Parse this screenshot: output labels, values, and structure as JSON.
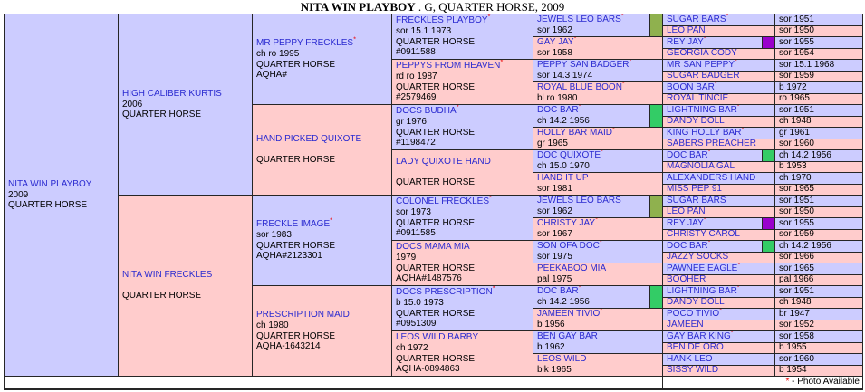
{
  "title": {
    "name": "NITA WIN PLAYBOY",
    "suffix": " . G, QUARTER HORSE, 2009"
  },
  "footer": {
    "asterisk": "*",
    "text": " - Photo Available"
  },
  "colors": {
    "sire_bg": "#ccccff",
    "dam_bg": "#ffcccc",
    "link": "#2a2ad0",
    "asterisk_red": "#ee0000",
    "marker_olive": "#8fb14e",
    "marker_green": "#33cc66",
    "marker_purple": "#9900cc",
    "border": "#262626"
  },
  "pedigree": {
    "columns": [
      {
        "generation": 1,
        "cells": [
          {
            "name": "NITA WIN PLAYBOY",
            "photo": false,
            "lines": [
              "2009",
              "QUARTER HORSE"
            ]
          }
        ]
      },
      {
        "generation": 2,
        "cells": [
          {
            "name": "HIGH CALIBER KURTIS",
            "photo": false,
            "lines": [
              "2006",
              "QUARTER HORSE"
            ]
          },
          {
            "name": "NITA WIN FRECKLES",
            "photo": false,
            "lines": [
              "",
              "QUARTER HORSE"
            ]
          }
        ]
      },
      {
        "generation": 3,
        "cells": [
          {
            "name": "MR PEPPY FRECKLES",
            "photo": true,
            "lines": [
              "ch ro 1995",
              "QUARTER HORSE",
              "AQHA#"
            ]
          },
          {
            "name": "HAND PICKED QUIXOTE",
            "photo": false,
            "lines": [
              "",
              "QUARTER HORSE"
            ]
          },
          {
            "name": "FRECKLE IMAGE",
            "photo": true,
            "lines": [
              "sor 1983",
              "QUARTER HORSE",
              "AQHA#2123301"
            ]
          },
          {
            "name": "PRESCRIPTION MAID",
            "photo": false,
            "lines": [
              "ch 1980",
              "QUARTER HORSE",
              "AQHA-1643214"
            ]
          }
        ]
      },
      {
        "generation": 4,
        "cells": [
          {
            "name": "FRECKLES PLAYBOY",
            "photo": true,
            "lines": [
              "sor 15.1 1973",
              "QUARTER HORSE",
              "#0911588"
            ]
          },
          {
            "name": "PEPPYS FROM HEAVEN",
            "photo": true,
            "lines": [
              "rd ro 1987",
              "QUARTER HORSE",
              "#2579469"
            ]
          },
          {
            "name": "DOCS BUDHA",
            "photo": true,
            "lines": [
              "gr 1976",
              "QUARTER HORSE",
              "#1198472"
            ]
          },
          {
            "name": "LADY QUIXOTE HAND",
            "photo": false,
            "lines": [
              "",
              "QUARTER HORSE"
            ]
          },
          {
            "name": "COLONEL FRECKLES",
            "photo": true,
            "lines": [
              "sor 1973",
              "QUARTER HORSE",
              "#0911585"
            ]
          },
          {
            "name": "DOCS MAMA MIA",
            "photo": false,
            "lines": [
              "1979",
              "QUARTER HORSE",
              "AQHA#1487576"
            ]
          },
          {
            "name": "DOCS PRESCRIPTION",
            "photo": true,
            "lines": [
              "b 15.0 1973",
              "QUARTER HORSE",
              "#0951309"
            ]
          },
          {
            "name": "LEOS WILD BARBY",
            "photo": false,
            "lines": [
              "ch 1972",
              "QUARTER HORSE",
              "AQHA-0894863"
            ]
          }
        ]
      },
      {
        "generation": 5,
        "cells": [
          {
            "name": "JEWELS LEO BARS",
            "photo": true,
            "lines": [
              "sor 1962"
            ],
            "marker": "olive"
          },
          {
            "name": "GAY JAY",
            "photo": true,
            "lines": [
              "sor 1958"
            ]
          },
          {
            "name": "PEPPY SAN BADGER",
            "photo": true,
            "lines": [
              "sor 14.3 1974"
            ]
          },
          {
            "name": "ROYAL BLUE BOON",
            "photo": true,
            "lines": [
              "bl ro 1980"
            ]
          },
          {
            "name": "DOC BAR",
            "photo": true,
            "lines": [
              "ch 14.2 1956"
            ],
            "marker": "green"
          },
          {
            "name": "HOLLY BAR MAID",
            "photo": true,
            "lines": [
              "gr 1965"
            ]
          },
          {
            "name": "DOC QUIXOTE",
            "photo": true,
            "lines": [
              "ch 15.0 1970"
            ]
          },
          {
            "name": "HAND IT UP",
            "photo": false,
            "lines": [
              "sor 1981"
            ]
          },
          {
            "name": "JEWELS LEO BARS",
            "photo": true,
            "lines": [
              "sor 1962"
            ],
            "marker": "olive"
          },
          {
            "name": "CHRISTY JAY",
            "photo": true,
            "lines": [
              "sor 1967"
            ]
          },
          {
            "name": "SON OFA DOC",
            "photo": true,
            "lines": [
              "sor 1975"
            ]
          },
          {
            "name": "PEEKABOO MIA",
            "photo": false,
            "lines": [
              "pal 1975"
            ]
          },
          {
            "name": "DOC BAR",
            "photo": true,
            "lines": [
              "ch 14.2 1956"
            ],
            "marker": "green"
          },
          {
            "name": "JAMEEN TIVIO",
            "photo": true,
            "lines": [
              "b 1956"
            ]
          },
          {
            "name": "BEN GAY BAR",
            "photo": false,
            "lines": [
              "b 1962"
            ]
          },
          {
            "name": "LEOS WILD",
            "photo": false,
            "lines": [
              "blk 1965"
            ]
          }
        ]
      },
      {
        "generation": 6,
        "cells": [
          {
            "name": "SUGAR BARS",
            "photo": true,
            "year": "sor 1951"
          },
          {
            "name": "LEO PAN",
            "photo": true,
            "year": "sor 1950"
          },
          {
            "name": "REY JAY",
            "photo": true,
            "year": "sor 1955",
            "marker": "purple"
          },
          {
            "name": "GEORGIA CODY",
            "photo": false,
            "year": "sor 1954"
          },
          {
            "name": "MR SAN PEPPY",
            "photo": true,
            "year": "sor 15.1 1968"
          },
          {
            "name": "SUGAR BADGER",
            "photo": true,
            "year": "sor 1959"
          },
          {
            "name": "BOON BAR",
            "photo": true,
            "year": "b 1972"
          },
          {
            "name": "ROYAL TINCIE",
            "photo": false,
            "year": "ro 1965"
          },
          {
            "name": "LIGHTNING BAR",
            "photo": true,
            "year": "sor 1951"
          },
          {
            "name": "DANDY DOLL",
            "photo": false,
            "year": "ch 1948"
          },
          {
            "name": "KING HOLLY BAR",
            "photo": true,
            "year": "gr 1961"
          },
          {
            "name": "SABERS PREACHER",
            "photo": false,
            "year": "sor 1960"
          },
          {
            "name": "DOC BAR",
            "photo": true,
            "year": "ch 14.2 1956",
            "marker": "green"
          },
          {
            "name": "MAGNOLIA GAL",
            "photo": false,
            "year": "b 1953"
          },
          {
            "name": "ALEXANDERS HAND",
            "photo": false,
            "year": "ch 1970"
          },
          {
            "name": "MISS PEP 91",
            "photo": false,
            "year": "sor 1965"
          },
          {
            "name": "SUGAR BARS",
            "photo": true,
            "year": "sor 1951"
          },
          {
            "name": "LEO PAN",
            "photo": true,
            "year": "sor 1950"
          },
          {
            "name": "REY JAY",
            "photo": true,
            "year": "sor 1955",
            "marker": "purple"
          },
          {
            "name": "CHRISTY CAROL",
            "photo": false,
            "year": "sor 1959"
          },
          {
            "name": "DOC BAR",
            "photo": true,
            "year": "ch 14.2 1956",
            "marker": "green"
          },
          {
            "name": "JAZZY SOCKS",
            "photo": false,
            "year": "sor 1966"
          },
          {
            "name": "PAWNEE EAGLE",
            "photo": true,
            "year": "sor 1965"
          },
          {
            "name": "BOOHER",
            "photo": false,
            "year": "pal 1966"
          },
          {
            "name": "LIGHTNING BAR",
            "photo": true,
            "year": "sor 1951"
          },
          {
            "name": "DANDY DOLL",
            "photo": false,
            "year": "ch 1948"
          },
          {
            "name": "POCO TIVIO",
            "photo": true,
            "year": "br 1947"
          },
          {
            "name": "JAMEEN",
            "photo": false,
            "year": "sor 1952"
          },
          {
            "name": "GAY BAR KING",
            "photo": true,
            "year": "sor 1958"
          },
          {
            "name": "BEN DE ORO",
            "photo": false,
            "year": "b 1955"
          },
          {
            "name": "HANK LEO",
            "photo": false,
            "year": "sor 1960"
          },
          {
            "name": "SISSY WILD",
            "photo": false,
            "year": "b 1954"
          }
        ]
      }
    ]
  }
}
